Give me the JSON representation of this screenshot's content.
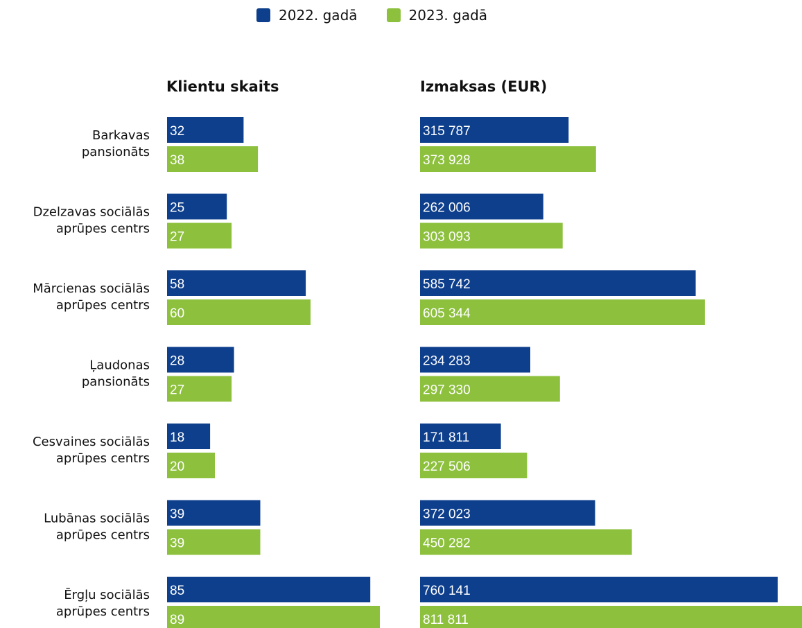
{
  "colors": {
    "series_2022": "#0e3f8c",
    "series_2023": "#8cc03d"
  },
  "chart_data": {
    "type": "bar",
    "orientation": "horizontal",
    "legend_placement": "top",
    "series_names": [
      "2022. gadā",
      "2023. gadā"
    ],
    "categories": [
      [
        "Barkavas",
        "pansionāts"
      ],
      [
        "Dzelzavas  sociālās",
        "aprūpes centrs"
      ],
      [
        "Mārcienas sociālās",
        "aprūpes centrs"
      ],
      [
        "Ļaudonas",
        "pansionāts"
      ],
      [
        "Cesvaines sociālās",
        "aprūpes centrs"
      ],
      [
        "Lubānas sociālās",
        "aprūpes centrs"
      ],
      [
        "Ērgļu sociālās",
        "aprūpes centrs"
      ]
    ],
    "panels": [
      {
        "title": "Klientu skaits",
        "series": [
          {
            "name": "2022. gadā",
            "values": [
              32,
              25,
              58,
              28,
              18,
              39,
              85
            ],
            "labels": [
              "32",
              "25",
              "58",
              "28",
              "18",
              "39",
              "85"
            ]
          },
          {
            "name": "2023. gadā",
            "values": [
              38,
              27,
              60,
              27,
              20,
              39,
              89
            ],
            "labels": [
              "38",
              "27",
              "60",
              "27",
              "20",
              "39",
              "89"
            ]
          }
        ]
      },
      {
        "title": "Izmaksas (EUR)",
        "series": [
          {
            "name": "2022. gadā",
            "values": [
              315787,
              262006,
              585742,
              234283,
              171811,
              372023,
              760141
            ],
            "labels": [
              "315 787",
              "262 006",
              "585 742",
              "234 283",
              "171 811",
              "372 023",
              "760 141"
            ]
          },
          {
            "name": "2023. gadā",
            "values": [
              373928,
              303093,
              605344,
              297330,
              227506,
              450282,
              811811
            ],
            "labels": [
              "373 928",
              "303 093",
              "605 344",
              "297 330",
              "227 506",
              "450 282",
              "811 811"
            ]
          }
        ]
      }
    ]
  }
}
